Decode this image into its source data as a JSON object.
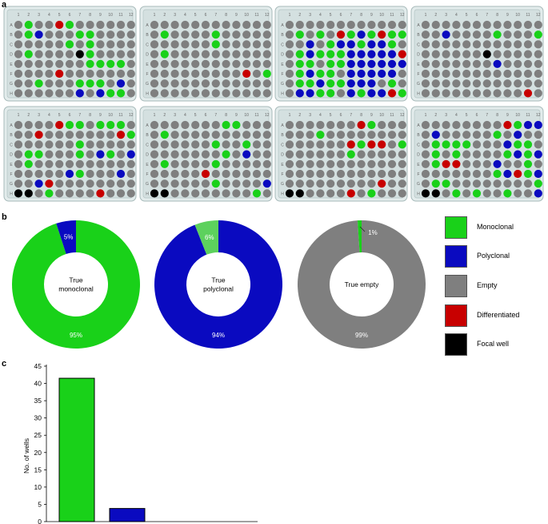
{
  "panels": {
    "a": "a",
    "b": "b",
    "c": "c"
  },
  "colors": {
    "monoclonal": "#19d119",
    "polyclonal": "#0a0ac0",
    "empty": "#7f7f7f",
    "differentiated": "#c80000",
    "focal": "#000000",
    "light_green": "#5dd15d"
  },
  "plates": {
    "rows": [
      "A",
      "B",
      "C",
      "D",
      "E",
      "F",
      "G",
      "H"
    ],
    "cols": [
      "1",
      "2",
      "3",
      "4",
      "5",
      "6",
      "7",
      "8",
      "9",
      "10",
      "11",
      "12"
    ],
    "layouts": [
      [
        "eGeeRGeeeeee",
        "eGBeeeGGeeee",
        "eeeeeGeGeeee",
        "eGeeeeKGeeee",
        "eeeeeeeGGGGe",
        "eeeeReeeeeee",
        "eeGeeeGGGeBe",
        "eeeeeeBeBGGe"
      ],
      [
        "eeeeeeeeeeee",
        "eGeeeeGeeeee",
        "eeeeeeGeeeee",
        "eGeeeeeeeeee",
        "eeeeeeeeeeee",
        "eeeeeeeeeReG",
        "eeeeeeeeeeee",
        "eeeeeeeeeeee"
      ],
      [
        "eeeeeeeeeeee",
        "eGeGeRGBGRGG",
        "eeBeGBBGBBGe",
        "eGBGGGBBBBBR",
        "eGGeGGBBBBBB",
        "eGBGGeBBBBBe",
        "eGGBGGBBBeGe",
        "eBBGGeBGBBRG"
      ],
      [
        "eeeeeeeeeeee",
        "eeBeeeeGeeeG",
        "eeeeeeeeeeee",
        "eeeeeeKeeeee",
        "eeeeeeeBeeee",
        "eeeeeeeeeeee",
        "eeeeeeeeeeee",
        "eeeeeeeeeeRe"
      ],
      [
        "eeeeRGGeGGGe",
        "eeReeeeeeeRG",
        "eeeeeeGeeeee",
        "eGGeeeGeBGeB",
        "eGeeeeeeeeee",
        "eeeeeBGeeeBe",
        "eeBReeeeeeee",
        "KKeGeeeeReee"
      ],
      [
        "eeeeeeeGGeee",
        "eGeeeeeeeeee",
        "eeeeeeGeeGee",
        "eeeeeeeGeBee",
        "eGeeeeGeeeee",
        "eeeeeReeeeee",
        "eeeeeeGeeeeB",
        "KKeeeeeeeeGe"
      ],
      [
        "eeeeeeeRGeee",
        "eeeGeeeeeeee",
        "eeeeeeRGRReG",
        "eeeeeeGeeeee",
        "eeeeeeeeeeee",
        "eeeeeeeeeeee",
        "eeeeeeeeeRee",
        "KKeeeeReGeee"
      ],
      [
        "eeeeeeeeRGBB",
        "eBeeeeeGeBee",
        "eGGGGeeeBGGe",
        "eGeGeeeeGBGB",
        "eGRReeeBeeGe",
        "eeeeeeeGBRGB",
        "eGGeeeeeeeeG",
        "KKeGeGeeGeeB"
      ]
    ]
  },
  "chart_data": [
    {
      "type": "pie",
      "center_label": [
        "True",
        "monoclonal"
      ],
      "slices": [
        {
          "category": "Monoclonal",
          "value": 95,
          "label": "95%"
        },
        {
          "category": "Polyclonal",
          "value": 5,
          "label": "5%"
        }
      ]
    },
    {
      "type": "pie",
      "center_label": [
        "True",
        "polyclonal"
      ],
      "slices": [
        {
          "category": "Polyclonal",
          "value": 94,
          "label": "94%"
        },
        {
          "category": "Monoclonal",
          "value": 6,
          "label": "6%"
        }
      ]
    },
    {
      "type": "pie",
      "center_label": [
        "True empty"
      ],
      "slices": [
        {
          "category": "Empty",
          "value": 99,
          "label": "99%"
        },
        {
          "category": "Monoclonal",
          "value": 1,
          "label": "1%"
        }
      ]
    },
    {
      "type": "bar",
      "categories": [
        "Monoclonal",
        "Polyclonal"
      ],
      "values": [
        41.5,
        3.8
      ],
      "xlabel": "",
      "ylabel": "No. of wells",
      "ylim": [
        0,
        45
      ],
      "yticks": [
        "0",
        "5",
        "10",
        "15",
        "20",
        "25",
        "30",
        "35",
        "40",
        "45"
      ]
    }
  ],
  "legend": [
    {
      "label": "Monoclonal",
      "color": "#19d119"
    },
    {
      "label": "Polyclonal",
      "color": "#0a0ac0"
    },
    {
      "label": "Empty",
      "color": "#7f7f7f"
    },
    {
      "label": "Differentiated",
      "color": "#c80000"
    },
    {
      "label": "Focal well",
      "color": "#000000"
    }
  ]
}
